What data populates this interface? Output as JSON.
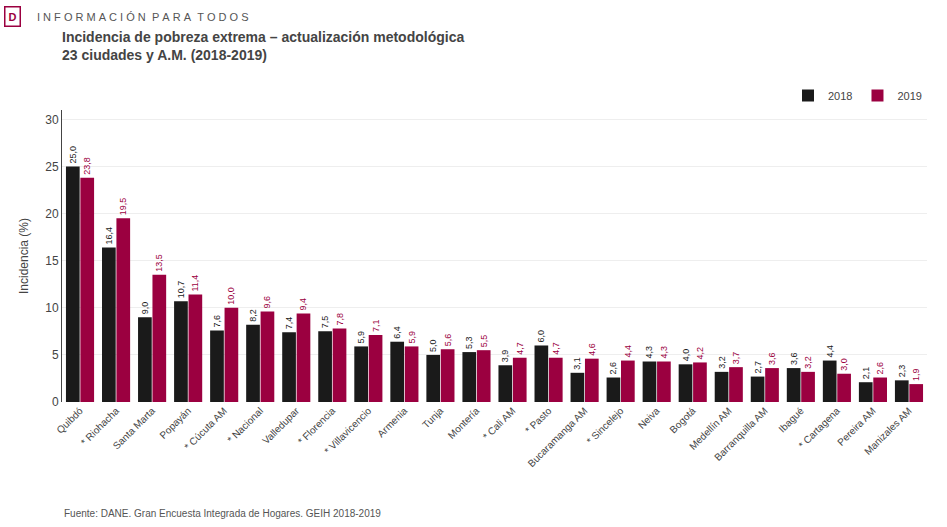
{
  "chart_data": {
    "type": "bar",
    "title": "Incidencia de pobreza extrema – actualización metodológica",
    "subtitle": "23 ciudades y A.M. (2018-2019)",
    "annotations": [
      "D",
      "I N F O R M A C I Ó N  P A R A  T O D O S",
      "Fuente: DANE. Gran Encuesta Integrada de Hogares. GEIH 2018-2019"
    ],
    "ylabel": "Incidencia (%)",
    "categories": [
      "Quibdó",
      "* Riohacha",
      "Santa Marta",
      "Popayán",
      "* Cúcuta AM",
      "* Nacional",
      "Valledupar",
      "* Florencia",
      "* Villavicencio",
      "Armenia",
      "Tunja",
      "Montería",
      "* Cali AM",
      "* Pasto",
      "Bucaramanga AM",
      "* Sincelejo",
      "Neiva",
      "Bogotá",
      "Medellín AM",
      "Barranquilla AM",
      "Ibagué",
      "* Cartagena",
      "Pereira AM",
      "Manizales AM"
    ],
    "series": [
      {
        "name": "2018",
        "color": "#1a1a1a",
        "values": [
          25.0,
          16.4,
          9.0,
          10.7,
          7.6,
          8.2,
          7.4,
          7.5,
          5.9,
          6.4,
          5.0,
          5.3,
          3.9,
          6.0,
          3.1,
          2.6,
          4.3,
          4.0,
          3.2,
          2.7,
          3.6,
          4.4,
          2.1,
          2.3
        ],
        "value_labels": [
          "25,0",
          "16,4",
          "9,0",
          "10,7",
          "7,6",
          "8,2",
          "7,4",
          "7,5",
          "5,9",
          "6,4",
          "5,0",
          "5,3",
          "3,9",
          "6,0",
          "3,1",
          "2,6",
          "4,3",
          "4,0",
          "3,2",
          "2,7",
          "3,6",
          "4,4",
          "2,1",
          "2,3"
        ]
      },
      {
        "name": "2019",
        "color": "#9b0040",
        "values": [
          23.8,
          19.5,
          13.5,
          11.4,
          10.0,
          9.6,
          9.4,
          7.8,
          7.1,
          5.9,
          5.6,
          5.5,
          4.7,
          4.7,
          4.6,
          4.4,
          4.3,
          4.2,
          3.7,
          3.6,
          3.2,
          3.0,
          2.6,
          1.9
        ],
        "value_labels": [
          "23,8",
          "19,5",
          "13,5",
          "11,4",
          "10,0",
          "9,6",
          "9,4",
          "7,8",
          "7,1",
          "5,9",
          "5,6",
          "5,5",
          "4,7",
          "4,7",
          "4,6",
          "4,4",
          "4,3",
          "4,2",
          "3,7",
          "3,6",
          "3,2",
          "3,0",
          "2,6",
          "1,9"
        ]
      }
    ],
    "ylim": [
      0,
      31
    ],
    "yticks": [
      0,
      5,
      10,
      15,
      20,
      25,
      30
    ],
    "grid": true,
    "legend": "upper right",
    "data_labels": true
  }
}
